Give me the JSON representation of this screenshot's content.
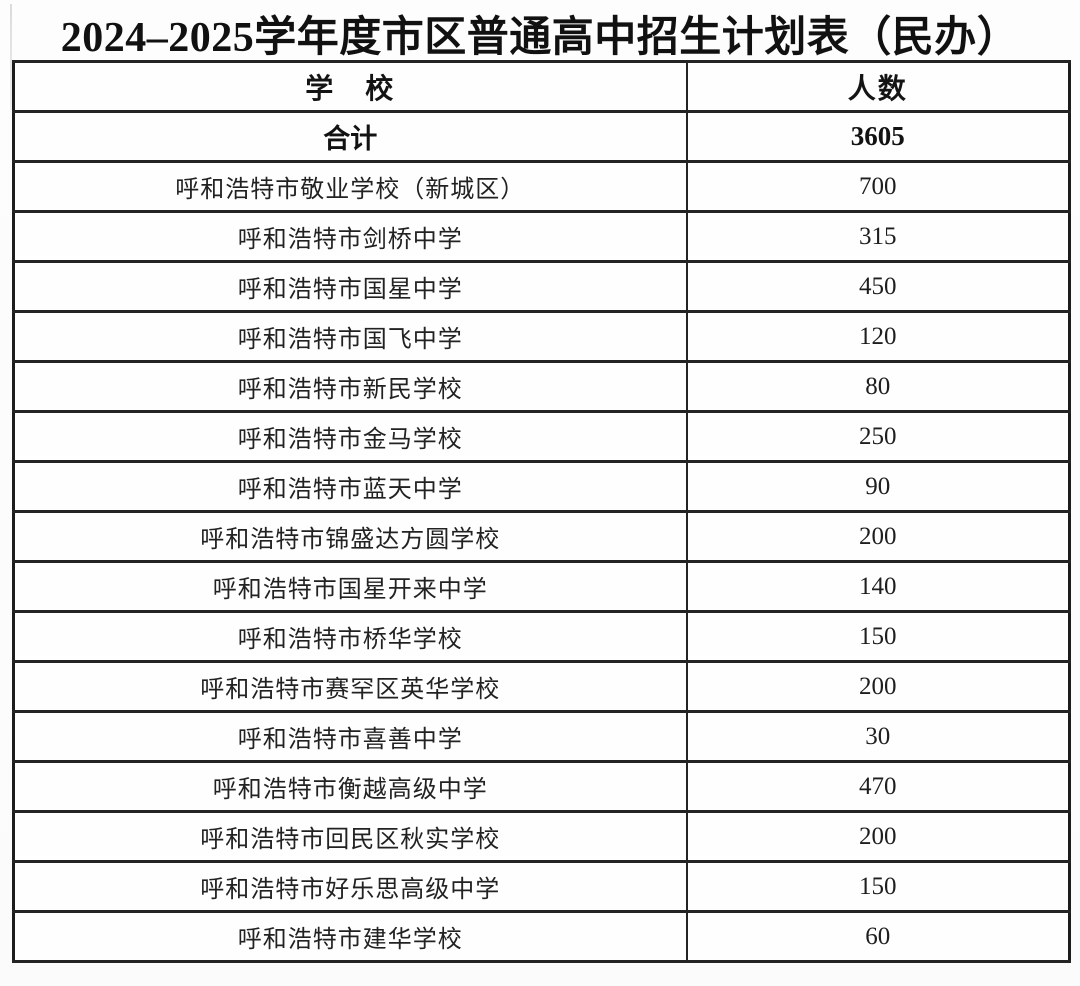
{
  "page": {
    "title": "2024–2025学年度市区普通高中招生计划表（民办）"
  },
  "colors": {
    "background": "#fcfcfc",
    "text": "#1a1a1a",
    "table_border": "#242424"
  },
  "table": {
    "header": {
      "school": "学　校",
      "count": "人数"
    },
    "total": {
      "school": "合计",
      "count": "3605"
    },
    "rows": [
      {
        "school": "呼和浩特市敬业学校（新城区）",
        "count": "700"
      },
      {
        "school": "呼和浩特市剑桥中学",
        "count": "315"
      },
      {
        "school": "呼和浩特市国星中学",
        "count": "450"
      },
      {
        "school": "呼和浩特市国飞中学",
        "count": "120"
      },
      {
        "school": "呼和浩特市新民学校",
        "count": "80"
      },
      {
        "school": "呼和浩特市金马学校",
        "count": "250"
      },
      {
        "school": "呼和浩特市蓝天中学",
        "count": "90"
      },
      {
        "school": "呼和浩特市锦盛达方圆学校",
        "count": "200"
      },
      {
        "school": "呼和浩特市国星开来中学",
        "count": "140"
      },
      {
        "school": "呼和浩特市桥华学校",
        "count": "150"
      },
      {
        "school": "呼和浩特市赛罕区英华学校",
        "count": "200"
      },
      {
        "school": "呼和浩特市喜善中学",
        "count": "30"
      },
      {
        "school": "呼和浩特市衡越高级中学",
        "count": "470"
      },
      {
        "school": "呼和浩特市回民区秋实学校",
        "count": "200"
      },
      {
        "school": "呼和浩特市好乐思高级中学",
        "count": "150"
      },
      {
        "school": "呼和浩特市建华学校",
        "count": "60"
      }
    ]
  }
}
